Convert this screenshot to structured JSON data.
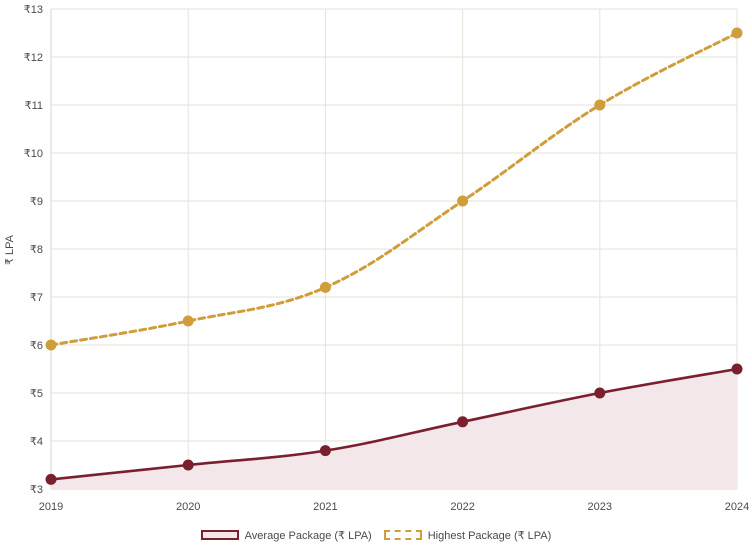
{
  "chart_data": {
    "type": "line",
    "x": [
      "2019",
      "2020",
      "2021",
      "2022",
      "2023",
      "2024"
    ],
    "ylabel": "₹ LPA",
    "ylim": [
      3,
      13
    ],
    "yticks": [
      "₹3",
      "₹4",
      "₹5",
      "₹6",
      "₹7",
      "₹8",
      "₹9",
      "₹10",
      "₹11",
      "₹12",
      "₹13"
    ],
    "grid": true,
    "legend_position": "bottom",
    "series": [
      {
        "name": "Average Package (₹ LPA)",
        "values": [
          3.2,
          3.5,
          3.8,
          4.4,
          5.0,
          5.5
        ],
        "color": "#7a1f2e",
        "fill": "#f3e7ea",
        "style": "solid"
      },
      {
        "name": "Highest Package (₹ LPA)",
        "values": [
          6.0,
          6.5,
          7.2,
          9.0,
          11.0,
          12.5
        ],
        "color": "#cf9d3a",
        "style": "dashed"
      }
    ]
  }
}
